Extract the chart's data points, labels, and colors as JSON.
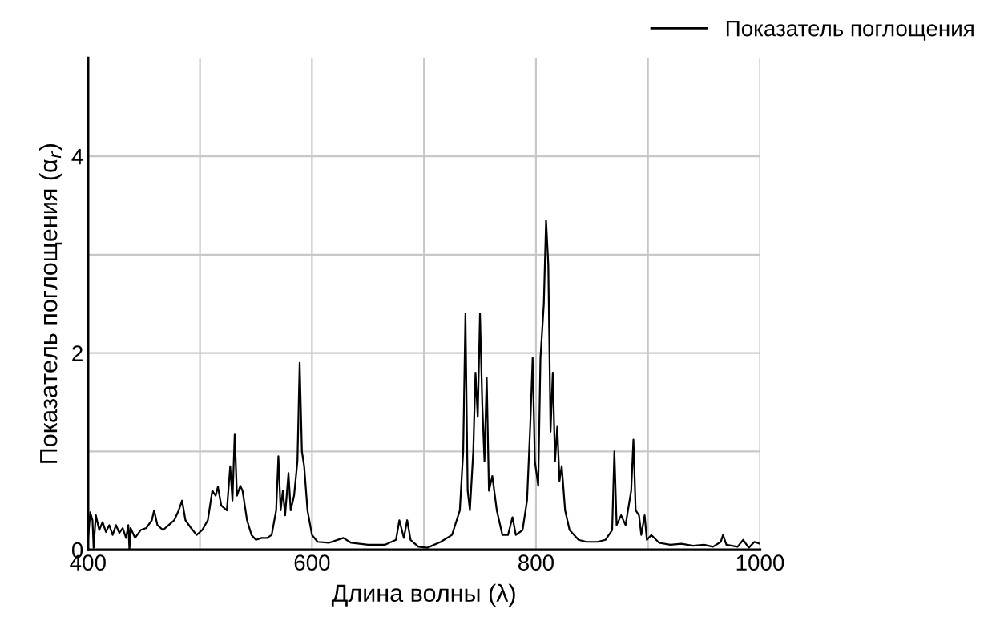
{
  "chart_data": {
    "type": "line",
    "xlabel": "Длина волны (λ)",
    "ylabel": "Показатель поглощения (α$_{r}$)",
    "xlim": [
      400,
      1000
    ],
    "ylim": [
      0,
      5
    ],
    "xticks": [
      400,
      {
        "value": 500,
        "label": null
      },
      600,
      {
        "value": 700,
        "label": null
      },
      800,
      {
        "value": 900,
        "label": null
      },
      1000
    ],
    "yticks": [
      0,
      {
        "value": 1,
        "label": null
      },
      2,
      {
        "value": 3,
        "label": null
      },
      4
    ],
    "grid": true,
    "legend": "top right",
    "marker": "none",
    "line_style": "solid",
    "series": [
      {
        "name": "Показатель поглощения",
        "color": "#000000",
        "x": [
          400,
          402,
          404,
          405,
          407,
          410,
          413,
          416,
          419,
          422,
          425,
          428,
          431,
          434,
          436,
          437,
          438,
          442,
          447,
          452,
          457,
          459,
          462,
          467,
          472,
          477,
          481,
          484,
          487,
          492,
          497,
          502,
          507,
          511,
          514,
          516,
          519,
          524,
          527,
          529,
          531,
          533,
          536,
          538,
          542,
          546,
          550,
          555,
          560,
          564,
          568,
          570,
          572,
          574,
          576,
          579,
          581,
          584,
          587,
          589,
          591,
          593,
          596,
          600,
          605,
          615,
          628,
          635,
          650,
          665,
          675,
          678,
          682,
          685,
          688,
          695,
          703,
          715,
          725,
          732,
          735,
          737,
          739,
          741,
          744,
          746,
          748,
          750,
          752,
          754,
          756,
          758,
          761,
          765,
          770,
          775,
          779,
          782,
          788,
          792,
          795,
          797,
          799,
          802,
          804,
          807,
          809,
          811,
          813,
          815,
          817,
          819,
          821,
          823,
          826,
          830,
          838,
          845,
          855,
          862,
          868,
          870,
          872,
          876,
          880,
          885,
          887,
          889,
          892,
          894,
          897,
          899,
          903,
          910,
          920,
          930,
          940,
          950,
          958,
          965,
          967,
          970,
          980,
          985,
          990,
          995,
          1000
        ],
        "values": [
          0.1,
          0.38,
          0.3,
          0.02,
          0.35,
          0.2,
          0.28,
          0.18,
          0.25,
          0.15,
          0.25,
          0.17,
          0.22,
          0.12,
          0.25,
          0.0,
          0.22,
          0.12,
          0.2,
          0.22,
          0.3,
          0.4,
          0.25,
          0.2,
          0.25,
          0.3,
          0.4,
          0.5,
          0.3,
          0.22,
          0.15,
          0.2,
          0.3,
          0.6,
          0.55,
          0.64,
          0.45,
          0.4,
          0.85,
          0.5,
          1.18,
          0.55,
          0.65,
          0.6,
          0.3,
          0.15,
          0.1,
          0.12,
          0.12,
          0.15,
          0.4,
          0.95,
          0.4,
          0.6,
          0.35,
          0.78,
          0.4,
          0.55,
          0.9,
          1.9,
          1.0,
          0.85,
          0.4,
          0.15,
          0.08,
          0.07,
          0.12,
          0.07,
          0.05,
          0.05,
          0.1,
          0.3,
          0.12,
          0.3,
          0.1,
          0.03,
          0.02,
          0.08,
          0.15,
          0.4,
          1.0,
          2.4,
          0.6,
          0.4,
          1.0,
          1.8,
          1.35,
          2.4,
          1.5,
          0.9,
          1.75,
          0.6,
          0.75,
          0.4,
          0.15,
          0.15,
          0.33,
          0.15,
          0.2,
          0.5,
          1.3,
          1.95,
          0.9,
          0.65,
          1.95,
          2.5,
          3.35,
          2.9,
          1.2,
          1.8,
          0.9,
          1.25,
          0.7,
          0.85,
          0.4,
          0.2,
          0.1,
          0.08,
          0.08,
          0.1,
          0.2,
          1.0,
          0.25,
          0.35,
          0.25,
          0.6,
          1.12,
          0.4,
          0.35,
          0.15,
          0.35,
          0.1,
          0.15,
          0.07,
          0.05,
          0.06,
          0.04,
          0.05,
          0.03,
          0.08,
          0.15,
          0.05,
          0.03,
          0.1,
          0.02,
          0.08,
          0.06
        ]
      }
    ]
  }
}
